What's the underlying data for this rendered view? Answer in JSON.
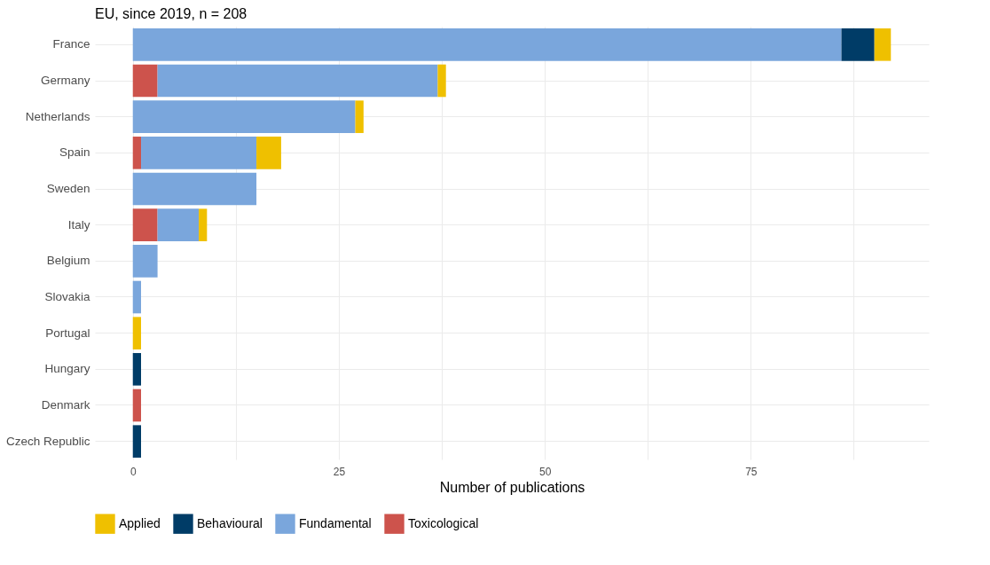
{
  "chart_data": {
    "type": "bar",
    "orientation": "horizontal",
    "stacked": true,
    "title": "EU, since 2019, n = 208",
    "xlabel": "Number of publications",
    "categories": [
      "France",
      "Germany",
      "Netherlands",
      "Spain",
      "Sweden",
      "Italy",
      "Belgium",
      "Slovakia",
      "Portugal",
      "Hungary",
      "Denmark",
      "Czech Republic"
    ],
    "series": [
      {
        "name": "Toxicological",
        "color": "#cd534c",
        "values": [
          null,
          3,
          null,
          1,
          null,
          3,
          null,
          null,
          null,
          null,
          1,
          null
        ]
      },
      {
        "name": "Fundamental",
        "color": "#7aa6dc",
        "values": [
          86,
          34,
          27,
          14,
          15,
          5,
          3,
          1,
          null,
          null,
          null,
          null
        ]
      },
      {
        "name": "Behavioural",
        "color": "#003c67",
        "values": [
          4,
          null,
          null,
          null,
          null,
          null,
          null,
          null,
          null,
          1,
          null,
          1
        ]
      },
      {
        "name": "Applied",
        "color": "#efc000",
        "values": [
          2,
          1,
          1,
          3,
          null,
          1,
          null,
          null,
          1,
          null,
          null,
          null
        ]
      }
    ],
    "xlim": [
      -4.6,
      96.6
    ],
    "xticks": [
      0,
      {
        "value": 12.5,
        "label": null
      },
      25,
      {
        "value": 37.5,
        "label": null
      },
      50,
      {
        "value": 62.5,
        "label": null
      },
      75,
      {
        "value": 87.5,
        "label": null
      }
    ],
    "grid": true,
    "legend": "bottom"
  }
}
